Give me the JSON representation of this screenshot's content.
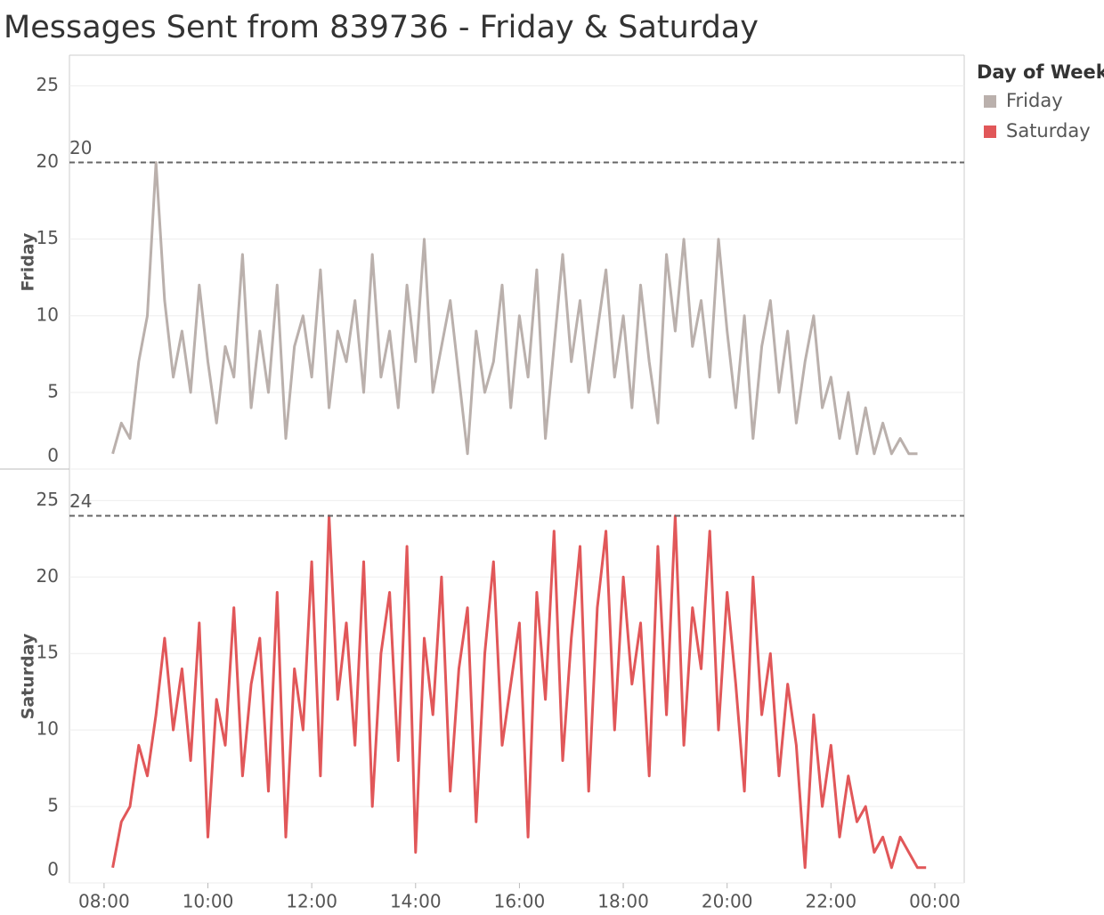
{
  "chart_data": [
    {
      "type": "line",
      "title": "Messages Sent from 839736 - Friday & Saturday",
      "legend_title": "Day of Week",
      "y_label": "Friday",
      "x": [
        "08:10",
        "08:20",
        "08:30",
        "08:40",
        "08:50",
        "09:00",
        "09:10",
        "09:20",
        "09:30",
        "09:40",
        "09:50",
        "10:00",
        "10:10",
        "10:20",
        "10:30",
        "10:40",
        "10:50",
        "11:00",
        "11:10",
        "11:20",
        "11:30",
        "11:40",
        "11:50",
        "12:00",
        "12:10",
        "12:20",
        "12:30",
        "12:40",
        "12:50",
        "13:00",
        "13:10",
        "13:20",
        "13:30",
        "13:40",
        "13:50",
        "14:00",
        "14:10",
        "14:20",
        "14:30",
        "14:40",
        "14:50",
        "15:00",
        "15:10",
        "15:20",
        "15:30",
        "15:40",
        "15:50",
        "16:00",
        "16:10",
        "16:20",
        "16:30",
        "16:40",
        "16:50",
        "17:00",
        "17:10",
        "17:20",
        "17:30",
        "17:40",
        "17:50",
        "18:00",
        "18:10",
        "18:20",
        "18:30",
        "18:40",
        "18:50",
        "19:00",
        "19:10",
        "19:20",
        "19:30",
        "19:40",
        "19:50",
        "20:00",
        "20:10",
        "20:20",
        "20:30",
        "20:40",
        "20:50",
        "21:00",
        "21:10",
        "21:20",
        "21:30",
        "21:40",
        "21:50",
        "22:00",
        "22:10",
        "22:20",
        "22:30",
        "22:40",
        "22:50",
        "23:00",
        "23:10",
        "23:20",
        "23:30",
        "23:40",
        "23:50"
      ],
      "series": [
        {
          "name": "Friday",
          "color": "#bab0ac",
          "values": [
            1,
            3,
            2,
            7,
            10,
            20,
            11,
            6,
            9,
            5,
            12,
            7,
            3,
            8,
            6,
            14,
            4,
            9,
            5,
            12,
            2,
            8,
            10,
            6,
            13,
            4,
            9,
            7,
            11,
            5,
            14,
            6,
            9,
            4,
            12,
            7,
            15,
            5,
            8,
            11,
            6,
            1,
            9,
            5,
            7,
            12,
            4,
            10,
            6,
            13,
            2,
            8,
            14,
            7,
            11,
            5,
            9,
            13,
            6,
            10,
            4,
            12,
            7,
            3,
            14,
            9,
            15,
            8,
            11,
            6,
            15,
            9,
            4,
            10,
            2,
            8,
            11,
            5,
            9,
            3,
            7,
            10,
            4,
            6,
            2,
            5,
            1,
            4,
            1,
            3,
            1,
            2,
            1,
            1,
            null
          ]
        }
      ],
      "xlim": [
        "07:20",
        "00:34"
      ],
      "ylim": [
        0,
        27
      ],
      "yticks": [
        0,
        5,
        10,
        15,
        20,
        25
      ],
      "reference_line": 20,
      "grid": true
    },
    {
      "type": "line",
      "y_label": "Saturday",
      "x": [
        "08:10",
        "08:20",
        "08:30",
        "08:40",
        "08:50",
        "09:00",
        "09:10",
        "09:20",
        "09:30",
        "09:40",
        "09:50",
        "10:00",
        "10:10",
        "10:20",
        "10:30",
        "10:40",
        "10:50",
        "11:00",
        "11:10",
        "11:20",
        "11:30",
        "11:40",
        "11:50",
        "12:00",
        "12:10",
        "12:20",
        "12:30",
        "12:40",
        "12:50",
        "13:00",
        "13:10",
        "13:20",
        "13:30",
        "13:40",
        "13:50",
        "14:00",
        "14:10",
        "14:20",
        "14:30",
        "14:40",
        "14:50",
        "15:00",
        "15:10",
        "15:20",
        "15:30",
        "15:40",
        "15:50",
        "16:00",
        "16:10",
        "16:20",
        "16:30",
        "16:40",
        "16:50",
        "17:00",
        "17:10",
        "17:20",
        "17:30",
        "17:40",
        "17:50",
        "18:00",
        "18:10",
        "18:20",
        "18:30",
        "18:40",
        "18:50",
        "19:00",
        "19:10",
        "19:20",
        "19:30",
        "19:40",
        "19:50",
        "20:00",
        "20:10",
        "20:20",
        "20:30",
        "20:40",
        "20:50",
        "21:00",
        "21:10",
        "21:20",
        "21:30",
        "21:40",
        "21:50",
        "22:00",
        "22:10",
        "22:20",
        "22:30",
        "22:40",
        "22:50",
        "23:00",
        "23:10",
        "23:20",
        "23:30",
        "23:40",
        "23:50"
      ],
      "series": [
        {
          "name": "Saturday",
          "color": "#e15759",
          "values": [
            1,
            4,
            5,
            9,
            7,
            11,
            16,
            10,
            14,
            8,
            17,
            3,
            12,
            9,
            18,
            7,
            13,
            16,
            6,
            19,
            3,
            14,
            10,
            21,
            7,
            24,
            12,
            17,
            9,
            21,
            5,
            15,
            19,
            8,
            22,
            2,
            16,
            11,
            20,
            6,
            14,
            18,
            4,
            15,
            21,
            9,
            13,
            17,
            3,
            19,
            12,
            23,
            8,
            16,
            22,
            6,
            18,
            23,
            10,
            20,
            13,
            17,
            7,
            22,
            11,
            24,
            9,
            18,
            14,
            23,
            10,
            19,
            13,
            6,
            20,
            11,
            15,
            7,
            13,
            9,
            1,
            11,
            5,
            9,
            3,
            7,
            4,
            5,
            2,
            3,
            1,
            3,
            2,
            1,
            1
          ]
        }
      ],
      "xlim": [
        "07:20",
        "00:34"
      ],
      "xticks": [
        "08:00",
        "10:00",
        "12:00",
        "14:00",
        "16:00",
        "18:00",
        "20:00",
        "22:00",
        "00:00"
      ],
      "ylim": [
        0,
        27
      ],
      "yticks": [
        0,
        5,
        10,
        15,
        20,
        25
      ],
      "reference_line": 24,
      "grid": true
    }
  ]
}
